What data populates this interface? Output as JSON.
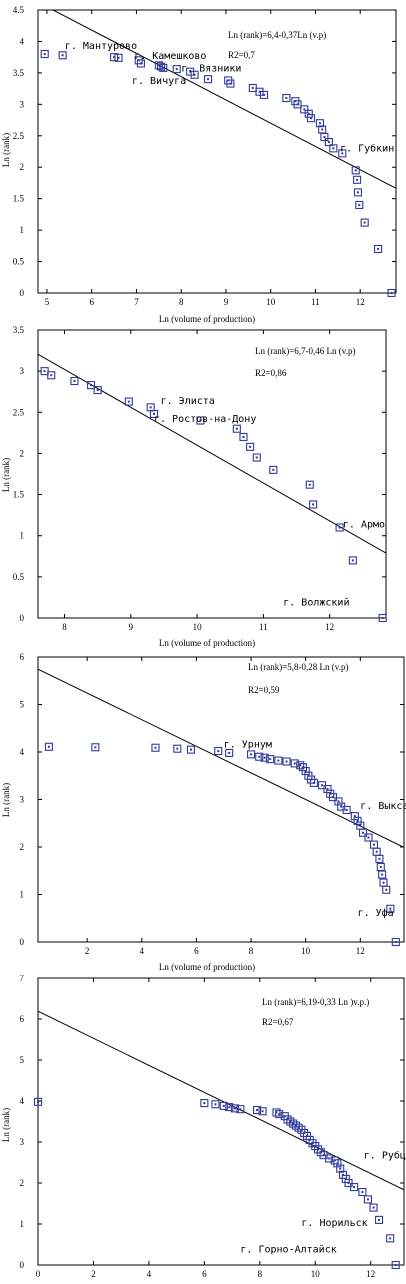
{
  "chart_data": [
    {
      "type": "scatter",
      "title": "",
      "xlabel": "Ln (volume of production)",
      "ylabel": "Ln (rank)",
      "xlim": [
        4.8,
        12.8
      ],
      "ylim": [
        0,
        4.5
      ],
      "xticks": [
        5,
        6,
        7,
        8,
        9,
        10,
        11,
        12
      ],
      "yticks": [
        0,
        0.5,
        1,
        1.5,
        2,
        2.5,
        3,
        3.5,
        4,
        4.5
      ],
      "ytick_labels": [
        "0",
        "0.5",
        "1",
        "1.5",
        "2",
        "2.5",
        "3",
        "3.5",
        "4",
        "4.5"
      ],
      "equation": "Ln (rank)=6,4-0,37Ln (v.p)",
      "r2": "R2=0,7",
      "fit_line": {
        "intercept": 6.4,
        "slope": -0.37
      },
      "annotations": [
        {
          "text": "г. Мантурово",
          "x": 5.4,
          "y": 3.88
        },
        {
          "text": "г. Камешково",
          "x": 6.95,
          "y": 3.72
        },
        {
          "text": "г. Вязники",
          "x": 8.0,
          "y": 3.52
        },
        {
          "text": "г. Вичуга",
          "x": 6.9,
          "y": 3.32
        },
        {
          "text": "г. Губкин",
          "x": 11.55,
          "y": 2.25
        }
      ],
      "points_x": [
        4.95,
        5.35,
        6.5,
        6.6,
        7.05,
        7.1,
        7.5,
        7.55,
        7.6,
        7.9,
        8.2,
        8.3,
        8.6,
        9.05,
        9.1,
        9.6,
        9.75,
        9.85,
        10.35,
        10.55,
        10.6,
        10.75,
        10.85,
        10.9,
        11.1,
        11.15,
        11.2,
        11.3,
        11.4,
        11.6,
        11.9,
        11.93,
        11.95,
        11.98,
        12.1,
        12.4,
        12.7
      ],
      "points_y": [
        3.8,
        3.78,
        3.75,
        3.74,
        3.7,
        3.65,
        3.62,
        3.6,
        3.58,
        3.56,
        3.52,
        3.47,
        3.4,
        3.38,
        3.33,
        3.26,
        3.2,
        3.15,
        3.1,
        3.05,
        3.0,
        2.92,
        2.85,
        2.78,
        2.7,
        2.6,
        2.48,
        2.4,
        2.3,
        2.22,
        1.95,
        1.8,
        1.6,
        1.4,
        1.12,
        0.7,
        0.0
      ]
    },
    {
      "type": "scatter",
      "title": "",
      "xlabel": "Ln (volume of production)",
      "ylabel": "Ln (rank)",
      "xlim": [
        7.6,
        12.85
      ],
      "ylim": [
        0,
        3.5
      ],
      "xticks": [
        8,
        9,
        10,
        11,
        12
      ],
      "yticks": [
        0,
        0.5,
        1,
        1.5,
        2,
        2.5,
        3,
        3.5
      ],
      "ytick_labels": [
        "0",
        "0.5",
        "1",
        "1.5",
        "2",
        "2.5",
        "3",
        "3.5"
      ],
      "equation": "Ln (rank)=6,7-0,46 Ln (v.p)",
      "r2": "R2=0,86",
      "fit_line": {
        "intercept": 6.7,
        "slope": -0.46
      },
      "annotations": [
        {
          "text": "г. Элиста",
          "x": 9.45,
          "y": 2.6
        },
        {
          "text": "г. Ростов-на-Дону",
          "x": 9.35,
          "y": 2.38
        },
        {
          "text": "г. Армо",
          "x": 12.2,
          "y": 1.1
        },
        {
          "text": "г. Волжский",
          "x": 11.3,
          "y": 0.15
        }
      ],
      "points_x": [
        7.7,
        7.8,
        8.15,
        8.4,
        8.5,
        8.97,
        9.3,
        9.35,
        10.05,
        10.6,
        10.7,
        10.8,
        10.9,
        11.15,
        11.7,
        11.75,
        12.15,
        12.35,
        12.8
      ],
      "points_y": [
        3.0,
        2.95,
        2.88,
        2.83,
        2.77,
        2.63,
        2.56,
        2.48,
        2.4,
        2.3,
        2.2,
        2.08,
        1.95,
        1.8,
        1.62,
        1.38,
        1.1,
        0.7,
        0.0
      ]
    },
    {
      "type": "scatter",
      "title": "",
      "xlabel": "Ln (volume of production)",
      "ylabel": "Ln (rank)",
      "xlim": [
        0.2,
        13.6
      ],
      "ylim": [
        0,
        6
      ],
      "xticks": [
        2,
        4,
        6,
        8,
        10,
        12
      ],
      "yticks": [
        0,
        1,
        2,
        3,
        4,
        5,
        6
      ],
      "ytick_labels": [
        "0",
        "1",
        "2",
        "3",
        "4",
        "5",
        "6"
      ],
      "equation": "Ln (rank)=5,8-0,28 Ln (v.p)",
      "r2": "R2=0,59",
      "fit_line": {
        "intercept": 5.8,
        "slope": -0.28
      },
      "annotations": [
        {
          "text": "г. Урнум",
          "x": 7.0,
          "y": 4.1
        },
        {
          "text": "г. Выкса",
          "x": 12.0,
          "y": 2.8
        },
        {
          "text": "г. Уфа",
          "x": 11.9,
          "y": 0.55
        }
      ],
      "points_x": [
        0.6,
        2.3,
        4.5,
        5.3,
        5.8,
        6.8,
        7.2,
        8.0,
        8.3,
        8.5,
        8.7,
        9.0,
        9.3,
        9.6,
        9.8,
        9.9,
        10.0,
        10.1,
        10.2,
        10.3,
        10.6,
        10.8,
        10.9,
        11.0,
        11.2,
        11.3,
        11.5,
        11.8,
        11.9,
        12.0,
        12.1,
        12.3,
        12.5,
        12.6,
        12.7,
        12.75,
        12.8,
        12.85,
        12.95,
        13.1,
        13.3
      ],
      "points_y": [
        4.11,
        4.1,
        4.09,
        4.07,
        4.05,
        4.02,
        3.98,
        3.95,
        3.9,
        3.88,
        3.85,
        3.82,
        3.8,
        3.76,
        3.72,
        3.68,
        3.6,
        3.5,
        3.42,
        3.35,
        3.3,
        3.22,
        3.12,
        3.05,
        2.96,
        2.85,
        2.78,
        2.65,
        2.55,
        2.45,
        2.3,
        2.2,
        2.05,
        1.9,
        1.75,
        1.58,
        1.42,
        1.25,
        1.1,
        0.7,
        0.0
      ]
    },
    {
      "type": "scatter",
      "title": "",
      "xlabel": "",
      "ylabel": "Ln (rank)",
      "xlim": [
        0,
        13.2
      ],
      "ylim": [
        0,
        7
      ],
      "xticks": [
        0,
        2,
        4,
        6,
        8,
        10,
        12
      ],
      "yticks": [
        0,
        1,
        2,
        3,
        4,
        5,
        6,
        7
      ],
      "ytick_labels": [
        "0",
        "1",
        "2",
        "3",
        "4",
        "5",
        "6",
        "7"
      ],
      "equation": "Ln (rank)=6,19-0,33 Ln )v.p.)",
      "r2": "R2=0,67",
      "fit_line": {
        "intercept": 6.19,
        "slope": -0.33
      },
      "annotations": [
        {
          "text": "г. Рубцовс",
          "x": 11.75,
          "y": 2.6
        },
        {
          "text": "г. Норильск",
          "x": 9.5,
          "y": 0.95
        },
        {
          "text": "г. Горно-Алтайск",
          "x": 7.3,
          "y": 0.3
        }
      ],
      "points_x": [
        0.0,
        6.0,
        6.4,
        6.7,
        6.9,
        7.1,
        7.3,
        7.9,
        8.1,
        8.6,
        8.7,
        8.9,
        9.0,
        9.1,
        9.2,
        9.3,
        9.4,
        9.5,
        9.6,
        9.7,
        9.8,
        9.9,
        10.0,
        10.1,
        10.2,
        10.3,
        10.5,
        10.7,
        10.8,
        10.9,
        11.0,
        11.1,
        11.2,
        11.4,
        11.7,
        11.9,
        12.1,
        12.3,
        12.7,
        12.9
      ],
      "points_y": [
        3.98,
        3.95,
        3.92,
        3.88,
        3.85,
        3.82,
        3.8,
        3.78,
        3.75,
        3.72,
        3.68,
        3.63,
        3.55,
        3.5,
        3.45,
        3.4,
        3.35,
        3.3,
        3.22,
        3.15,
        3.05,
        2.97,
        2.9,
        2.82,
        2.75,
        2.68,
        2.6,
        2.55,
        2.48,
        2.35,
        2.2,
        2.1,
        2.0,
        1.9,
        1.78,
        1.6,
        1.4,
        1.1,
        0.65,
        0.0
      ]
    }
  ]
}
